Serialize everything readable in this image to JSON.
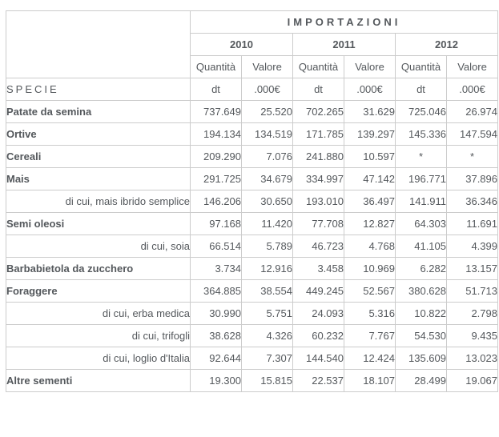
{
  "colors": {
    "accent_orange": "#fcc992",
    "border_gray": "#cccccc",
    "text_dark": "#3e4347",
    "text_gray": "#54585c"
  },
  "chart_data": {
    "type": "table",
    "title": "IMPORTAZIONI",
    "row_header": "SPECIE",
    "col_groups": [
      "2010",
      "2011",
      "2012"
    ],
    "sub_columns": [
      "Quantità",
      "Valore"
    ],
    "unit_quantity": "dt",
    "unit_value": ".000€",
    "layout": "first column species names; three year groups each with Quantità (dt) and Valore (.000€) columns; sub-rows prefixed 'di cui' are right-aligned detail rows",
    "rows": [
      {
        "label": "Patate da semina",
        "type": "main",
        "values": [
          "737.649",
          "25.520",
          "702.265",
          "31.629",
          "725.046",
          "26.974"
        ]
      },
      {
        "label": "Ortive",
        "type": "main",
        "values": [
          "194.134",
          "134.519",
          "171.785",
          "139.297",
          "145.336",
          "147.594"
        ]
      },
      {
        "label": "Cereali",
        "type": "main",
        "values": [
          "209.290",
          "7.076",
          "241.880",
          "10.597",
          "*",
          "*"
        ]
      },
      {
        "label": "Mais",
        "type": "main",
        "values": [
          "291.725",
          "34.679",
          "334.997",
          "47.142",
          "196.771",
          "37.896"
        ]
      },
      {
        "label": "di cui, mais ibrido semplice",
        "type": "sub",
        "values": [
          "146.206",
          "30.650",
          "193.010",
          "36.497",
          "141.911",
          "36.346"
        ]
      },
      {
        "label": "Semi oleosi",
        "type": "main",
        "values": [
          "97.168",
          "11.420",
          "77.708",
          "12.827",
          "64.303",
          "11.691"
        ]
      },
      {
        "label": "di cui, soia",
        "type": "sub",
        "values": [
          "66.514",
          "5.789",
          "46.723",
          "4.768",
          "41.105",
          "4.399"
        ]
      },
      {
        "label": "Barbabietola da zucchero",
        "type": "main",
        "values": [
          "3.734",
          "12.916",
          "3.458",
          "10.969",
          "6.282",
          "13.157"
        ]
      },
      {
        "label": "Foraggere",
        "type": "main",
        "values": [
          "364.885",
          "38.554",
          "449.245",
          "52.567",
          "380.628",
          "51.713"
        ]
      },
      {
        "label": "di cui, erba medica",
        "type": "sub",
        "values": [
          "30.990",
          "5.751",
          "24.093",
          "5.316",
          "10.822",
          "2.798"
        ]
      },
      {
        "label": "di cui, trifogli",
        "type": "sub",
        "values": [
          "38.628",
          "4.326",
          "60.232",
          "7.767",
          "54.530",
          "9.435"
        ]
      },
      {
        "label": "di cui, loglio d'Italia",
        "type": "sub",
        "values": [
          "92.644",
          "7.307",
          "144.540",
          "12.424",
          "135.609",
          "13.023"
        ]
      },
      {
        "label": "Altre sementi",
        "type": "main",
        "values": [
          "19.300",
          "15.815",
          "22.537",
          "18.107",
          "28.499",
          "19.067"
        ]
      }
    ]
  }
}
